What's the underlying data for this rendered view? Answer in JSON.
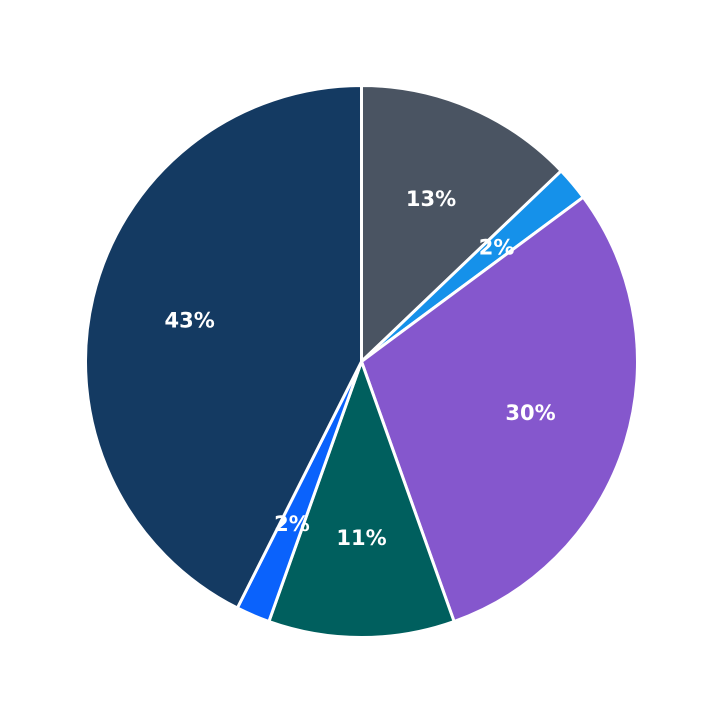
{
  "chart_data": {
    "type": "pie",
    "title": "",
    "legend": "none",
    "start_angle": "12 o'clock",
    "direction": "clockwise",
    "slices": [
      {
        "label": "13%",
        "value": 13,
        "color": "#4a5462"
      },
      {
        "label": "2%",
        "value": 2,
        "color": "#1591ea"
      },
      {
        "label": "30%",
        "value": 30,
        "color": "#8557cd"
      },
      {
        "label": "11%",
        "value": 11,
        "color": "#005f5e"
      },
      {
        "label": "2%",
        "value": 2,
        "color": "#0a62fc"
      },
      {
        "label": "43%",
        "value": 43,
        "color": "#143a62"
      }
    ]
  }
}
